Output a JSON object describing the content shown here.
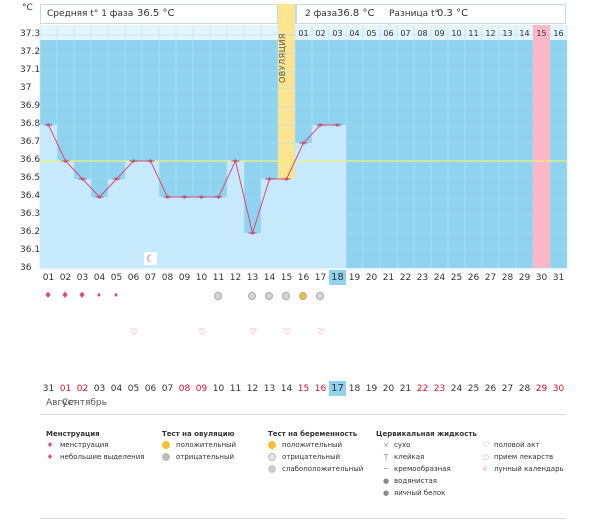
{
  "header": {
    "unit_label": "°C",
    "phase1_label": "Средняя t° 1 фаза",
    "phase1_value": "36.5 °C",
    "phase2_label": "2 фаза",
    "phase2_value": "36.8 °C",
    "diff_label": "Разница t°",
    "diff_value": "0.3 °C",
    "sun_icon": "sun-icon"
  },
  "ovulation_label": "ОВУЛЯЦИЯ",
  "cycle_day_numbers": [
    "01",
    "02",
    "03",
    "04",
    "05",
    "06",
    "07",
    "08",
    "09",
    "10",
    "11",
    "12",
    "13",
    "14",
    "15",
    "16"
  ],
  "highlighted_cycle_day": "15",
  "y_ticks": [
    "37.3",
    "37.2",
    "37.1",
    "37",
    "36.9",
    "36.8",
    "36.7",
    "36.6",
    "36.5",
    "36.4",
    "36.3",
    "36.2",
    "36.1",
    "36"
  ],
  "day_labels": [
    "01",
    "02",
    "03",
    "04",
    "05",
    "06",
    "07",
    "08",
    "09",
    "10",
    "11",
    "12",
    "13",
    "14",
    "15",
    "16",
    "17",
    "18",
    "19",
    "20",
    "21",
    "22",
    "23",
    "24",
    "25",
    "26",
    "27",
    "28",
    "29",
    "30",
    "31"
  ],
  "current_day": "18",
  "date_labels": [
    "31",
    "01",
    "02",
    "03",
    "04",
    "05",
    "06",
    "07",
    "08",
    "09",
    "10",
    "11",
    "12",
    "13",
    "14",
    "15",
    "16",
    "17",
    "18",
    "19",
    "20",
    "21",
    "22",
    "23",
    "24",
    "25",
    "26",
    "27",
    "28",
    "29",
    "30"
  ],
  "date_red_indices": [
    1,
    2,
    8,
    9,
    15,
    16,
    22,
    23,
    29,
    30
  ],
  "current_date": "17",
  "month_labels": {
    "prev": "Август",
    "current": "Сентябрь"
  },
  "chart_data": {
    "type": "line",
    "x": [
      "01",
      "02",
      "03",
      "04",
      "05",
      "06",
      "07",
      "08",
      "09",
      "10",
      "11",
      "12",
      "13",
      "14",
      "15",
      "16",
      "17",
      "18"
    ],
    "values": [
      36.8,
      36.6,
      36.5,
      36.4,
      36.5,
      36.6,
      36.6,
      36.4,
      36.4,
      36.4,
      36.4,
      36.6,
      36.2,
      36.5,
      36.5,
      36.7,
      36.8,
      36.8
    ],
    "reference_line": 36.6,
    "ylim": [
      36,
      37.3
    ],
    "ylabel": "°C",
    "colors": {
      "line": "#e0457a",
      "fill": "#c6eafb",
      "background": "#8fd3ef",
      "ovulation": "#fde48f",
      "today": "#f8b8c8",
      "reference": "#f0f07a"
    }
  },
  "marks": {
    "menstruation": [
      {
        "day": 1,
        "icon": "drop-icon"
      },
      {
        "day": 2,
        "icon": "drop-icon"
      },
      {
        "day": 3,
        "icon": "drop-icon"
      },
      {
        "day": 4,
        "icon": "small-drop-icon"
      },
      {
        "day": 5,
        "icon": "small-drop-icon"
      }
    ],
    "tests": [
      {
        "day": 11,
        "icon": "negative-test-icon"
      },
      {
        "day": 13,
        "icon": "negative-test-icon"
      },
      {
        "day": 14,
        "icon": "negative-test-icon"
      },
      {
        "day": 15,
        "icon": "negative-test-icon"
      },
      {
        "day": 16,
        "icon": "positive-test-icon"
      },
      {
        "day": 17,
        "icon": "negative-test-icon"
      }
    ],
    "intercourse": [
      6,
      10,
      13,
      15,
      17
    ],
    "moon_day": 7
  },
  "legend": {
    "menstruation": {
      "title": "Менструация",
      "items": [
        "менструация",
        "небольшие выделения"
      ]
    },
    "ovulation_test": {
      "title": "Тест на овуляцию",
      "items": [
        "положительный",
        "отрицательный"
      ]
    },
    "pregnancy_test": {
      "title": "Тест на беременность",
      "items": [
        "положительный",
        "отрицательный",
        "слабоположительный"
      ]
    },
    "cervical": {
      "title": "Цервикальная жидкость",
      "items": [
        "сухо",
        "клейкая",
        "кремообразная",
        "водянистая",
        "яичный белок"
      ]
    },
    "other": {
      "items": [
        "половой акт",
        "прием лекарств",
        "лунный календарь"
      ]
    }
  }
}
